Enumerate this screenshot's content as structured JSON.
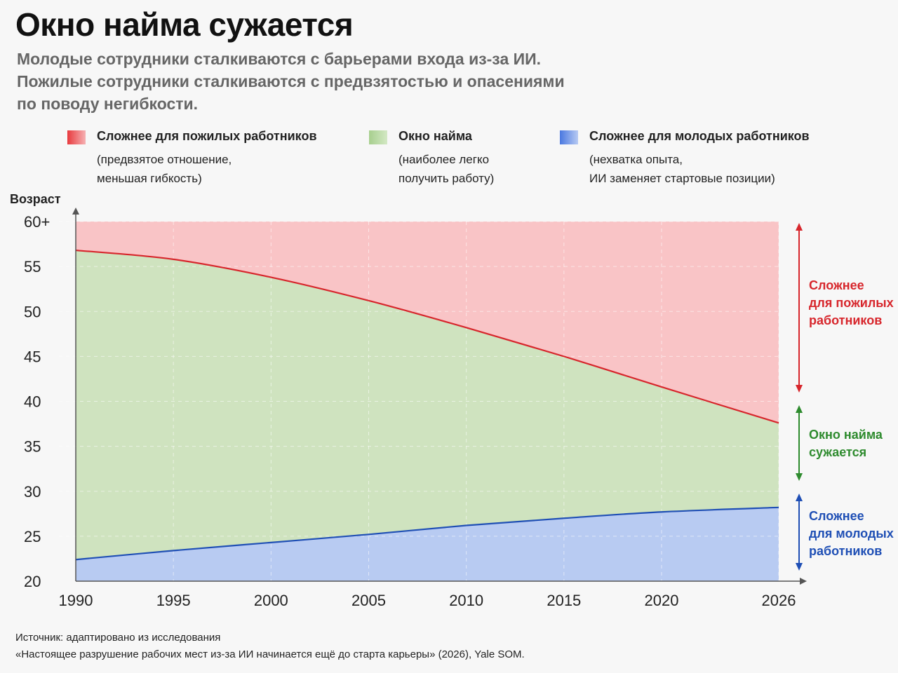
{
  "title": "Окно найма сужается",
  "subtitle": [
    "Молодые сотрудники сталкиваются с барьерами входа из-за ИИ.",
    "Пожилые сотрудники сталкиваются с предвзятостью и опасениями",
    "по поводу негибкости."
  ],
  "legend": [
    {
      "title": "Сложнее для пожилых работников",
      "desc": [
        "(предвзятое отношение,",
        "меньшая гибкость)"
      ],
      "color": "#f4a0a4"
    },
    {
      "title": "Окно найма",
      "desc": [
        "(наиболее легко",
        "получить работу)"
      ],
      "color": "#c3dfb0"
    },
    {
      "title": "Сложнее для молодых работников",
      "desc": [
        "(нехватка опыта,",
        "ИИ заменяет стартовые позиции)"
      ],
      "color": "#9db8ee"
    }
  ],
  "side_labels": [
    {
      "lines": [
        "Сложнее",
        "для пожилых",
        "работников"
      ],
      "color": "#d7262c"
    },
    {
      "lines": [
        "Окно найма",
        "сужается"
      ],
      "color": "#2e8b2e"
    },
    {
      "lines": [
        "Сложнее",
        "для молодых",
        "работников"
      ],
      "color": "#1f4fb5"
    }
  ],
  "source": [
    "Источник: адаптировано из исследования",
    "«Настоящее разрушение рабочих мест из-за ИИ начинается ещё до старта карьеры» (2026), Yale SOM."
  ],
  "chart_data": {
    "type": "area",
    "ylabel": "Возраст",
    "ylim": [
      20,
      60
    ],
    "y_ticks": [
      20,
      25,
      30,
      35,
      40,
      45,
      50,
      55,
      60
    ],
    "y_tick_labels": [
      "20",
      "25",
      "30",
      "35",
      "40",
      "45",
      "50",
      "55",
      "60+"
    ],
    "xlim": [
      1990,
      2026
    ],
    "x_ticks": [
      1990,
      1995,
      2000,
      2005,
      2010,
      2015,
      2020,
      2026
    ],
    "x_tick_labels": [
      "1990",
      "1995",
      "2000",
      "2005",
      "2010",
      "2015",
      "2020",
      "2026"
    ],
    "grid": true,
    "x": [
      1990,
      1995,
      2000,
      2005,
      2010,
      2015,
      2020,
      2026
    ],
    "series": [
      {
        "values": [
          56.8,
          55.8,
          53.8,
          51.2,
          48.2,
          45.0,
          41.6,
          37.6
        ],
        "color": "#d7262c",
        "fill": "#f9c4c6"
      },
      {
        "values": [
          22.4,
          23.4,
          24.3,
          25.2,
          26.2,
          27.0,
          27.7,
          28.2
        ],
        "color": "#1f4fb5",
        "fill": "#b8cbf2"
      }
    ],
    "window_fill": "#cfe3bf"
  }
}
